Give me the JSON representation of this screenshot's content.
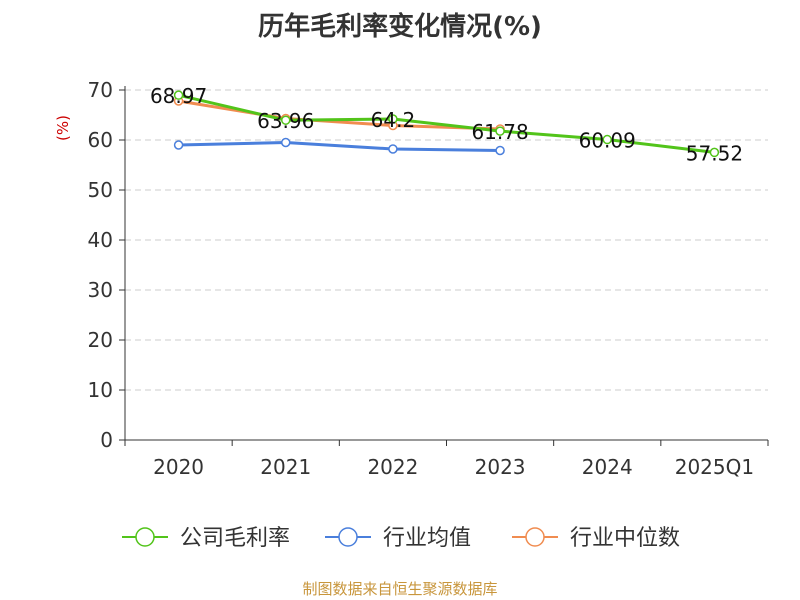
{
  "chart_data": {
    "type": "line",
    "title": "历年毛利率变化情况(%)",
    "ylabel": "(%)",
    "categories": [
      "2020",
      "2021",
      "2022",
      "2023",
      "2024",
      "2025Q1"
    ],
    "ylim": [
      0,
      70
    ],
    "yticks": [
      0,
      10,
      20,
      30,
      40,
      50,
      60,
      70
    ],
    "grid": true,
    "legend_position": "bottom",
    "series": [
      {
        "name": "公司毛利率",
        "color": "#52c41a",
        "values": [
          68.97,
          63.96,
          64.2,
          61.78,
          60.09,
          57.52
        ],
        "labels": [
          "68.97",
          "63.96",
          "64.2",
          "61.78",
          "60.09",
          "57.52"
        ]
      },
      {
        "name": "行业均值",
        "color": "#4a7fdc",
        "values": [
          59,
          59.5,
          58.2,
          57.9,
          null,
          null
        ]
      },
      {
        "name": "行业中位数",
        "color": "#f08c50",
        "values": [
          67.8,
          64.3,
          62.9,
          62.2,
          null,
          null
        ]
      }
    ]
  },
  "source": "制图数据来自恒生聚源数据库"
}
